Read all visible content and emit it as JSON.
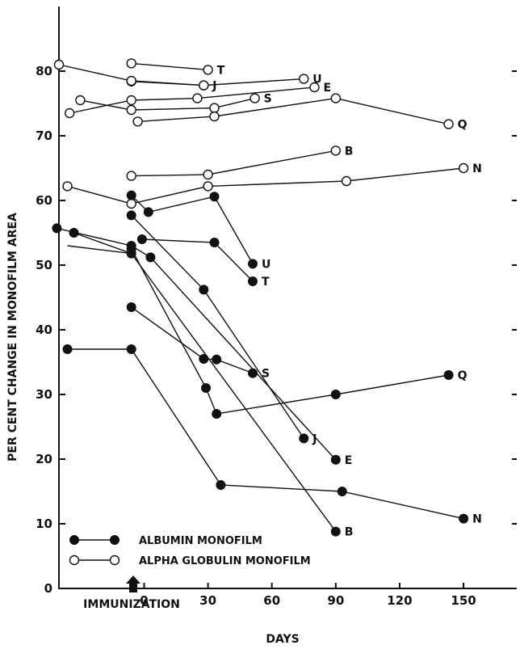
{
  "chart_data": {
    "type": "line",
    "title": "",
    "xlabel": "DAYS",
    "ylabel": "PER CENT CHANGE IN MONOFILM AREA",
    "annotation": "IMMUNIZATION",
    "xlim": [
      -40,
      175
    ],
    "ylim": [
      0,
      90
    ],
    "x_ticks": [
      0,
      30,
      60,
      90,
      120,
      150
    ],
    "y_ticks": [
      0,
      10,
      20,
      30,
      40,
      50,
      60,
      70,
      80
    ],
    "legend": [
      {
        "key": "filled",
        "label": "ALBUMIN MONOFILM"
      },
      {
        "key": "open",
        "label": "ALPHA GLOBULIN MONOFILM"
      }
    ],
    "series": [
      {
        "name": "T",
        "marker": "open",
        "points": [
          [
            -6,
            81.2
          ],
          [
            30,
            80.2
          ]
        ]
      },
      {
        "name": "U",
        "marker": "open",
        "points": [
          [
            -6,
            78.4
          ],
          [
            28,
            77.8
          ],
          [
            75,
            78.8
          ]
        ]
      },
      {
        "name": "E",
        "marker": "open",
        "points": [
          [
            -35,
            73.5
          ],
          [
            -6,
            75.5
          ],
          [
            25,
            75.8
          ],
          [
            80,
            77.5
          ]
        ]
      },
      {
        "name": "S",
        "marker": "open",
        "points": [
          [
            -30,
            75.5
          ],
          [
            -6,
            74
          ],
          [
            33,
            74.3
          ],
          [
            52,
            75.8
          ]
        ]
      },
      {
        "name": "Q",
        "marker": "open",
        "points": [
          [
            -3,
            72.2
          ],
          [
            33,
            73
          ],
          [
            90,
            75.8
          ],
          [
            143,
            71.8
          ]
        ]
      },
      {
        "name": "J",
        "marker": "open",
        "points": [
          [
            -40,
            81
          ],
          [
            -6,
            78.5
          ],
          [
            28,
            77.8
          ]
        ]
      },
      {
        "name": "B",
        "marker": "open",
        "points": [
          [
            -6,
            63.8
          ],
          [
            30,
            64
          ],
          [
            90,
            67.7
          ]
        ]
      },
      {
        "name": "N",
        "marker": "open",
        "points": [
          [
            -36,
            62.2
          ],
          [
            -6,
            59.5
          ],
          [
            30,
            62.2
          ],
          [
            95,
            63
          ],
          [
            150,
            65
          ]
        ]
      },
      {
        "name": "U",
        "marker": "filled",
        "points": [
          [
            -6,
            60.8
          ],
          [
            2,
            58.2
          ],
          [
            33,
            60.6
          ],
          [
            51,
            50.2
          ]
        ]
      },
      {
        "name": "T",
        "marker": "filled",
        "points": [
          [
            -1,
            54
          ],
          [
            33,
            53.5
          ],
          [
            51,
            47.5
          ]
        ]
      },
      {
        "name": "S",
        "marker": "filled",
        "points": [
          [
            -6,
            43.5
          ],
          [
            28,
            35.5
          ],
          [
            34,
            35.4
          ],
          [
            51,
            33.3
          ]
        ]
      },
      {
        "name": "Q",
        "marker": "filled",
        "points": [
          [
            -6,
            52.5
          ],
          [
            29,
            31
          ],
          [
            34,
            27
          ],
          [
            90,
            30
          ],
          [
            143,
            33
          ]
        ]
      },
      {
        "name": "J",
        "marker": "filled",
        "points": [
          [
            -6,
            57.7
          ],
          [
            28,
            46.2
          ],
          [
            75,
            23.2
          ]
        ]
      },
      {
        "name": "E",
        "marker": "filled",
        "points": [
          [
            -41,
            55.7
          ],
          [
            -6,
            53
          ],
          [
            3,
            51.2
          ],
          [
            90,
            19.9
          ]
        ]
      },
      {
        "name": "B",
        "marker": "filled",
        "points": [
          [
            -33,
            55
          ],
          [
            -6,
            51.8
          ],
          [
            90,
            8.8
          ]
        ]
      },
      {
        "name": "N",
        "marker": "filled",
        "points": [
          [
            -36,
            37
          ],
          [
            -6,
            37
          ],
          [
            36,
            16
          ],
          [
            93,
            15
          ],
          [
            150,
            10.8
          ]
        ]
      },
      {
        "name": "",
        "marker": "none",
        "points": [
          [
            -36,
            53
          ],
          [
            -6,
            51.8
          ]
        ]
      }
    ]
  }
}
